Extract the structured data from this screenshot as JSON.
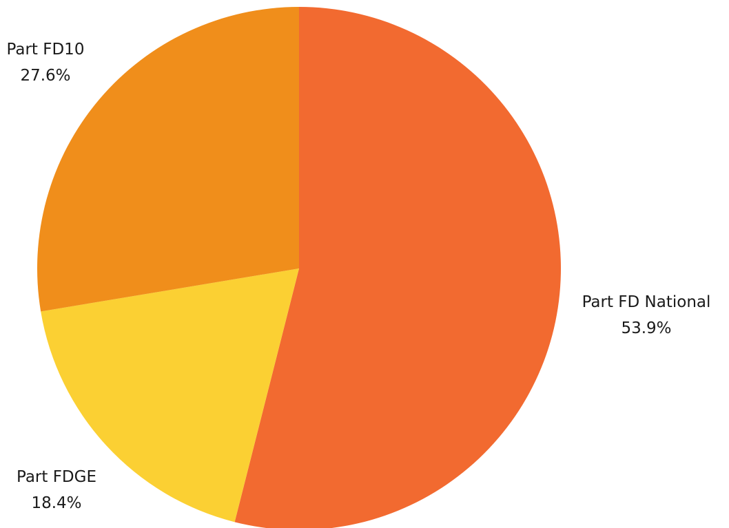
{
  "chart_data": {
    "type": "pie",
    "title": "",
    "start_angle_deg": 0,
    "direction": "clockwise",
    "slices": [
      {
        "name": "Part FD National",
        "value": 53.9,
        "label": "53.9%",
        "color": "#f26a30"
      },
      {
        "name": "Part FDGE",
        "value": 18.4,
        "label": "18.4%",
        "color": "#fbd033"
      },
      {
        "name": "Part FD10",
        "value": 27.6,
        "label": "27.6%",
        "color": "#f08e1b"
      }
    ]
  }
}
